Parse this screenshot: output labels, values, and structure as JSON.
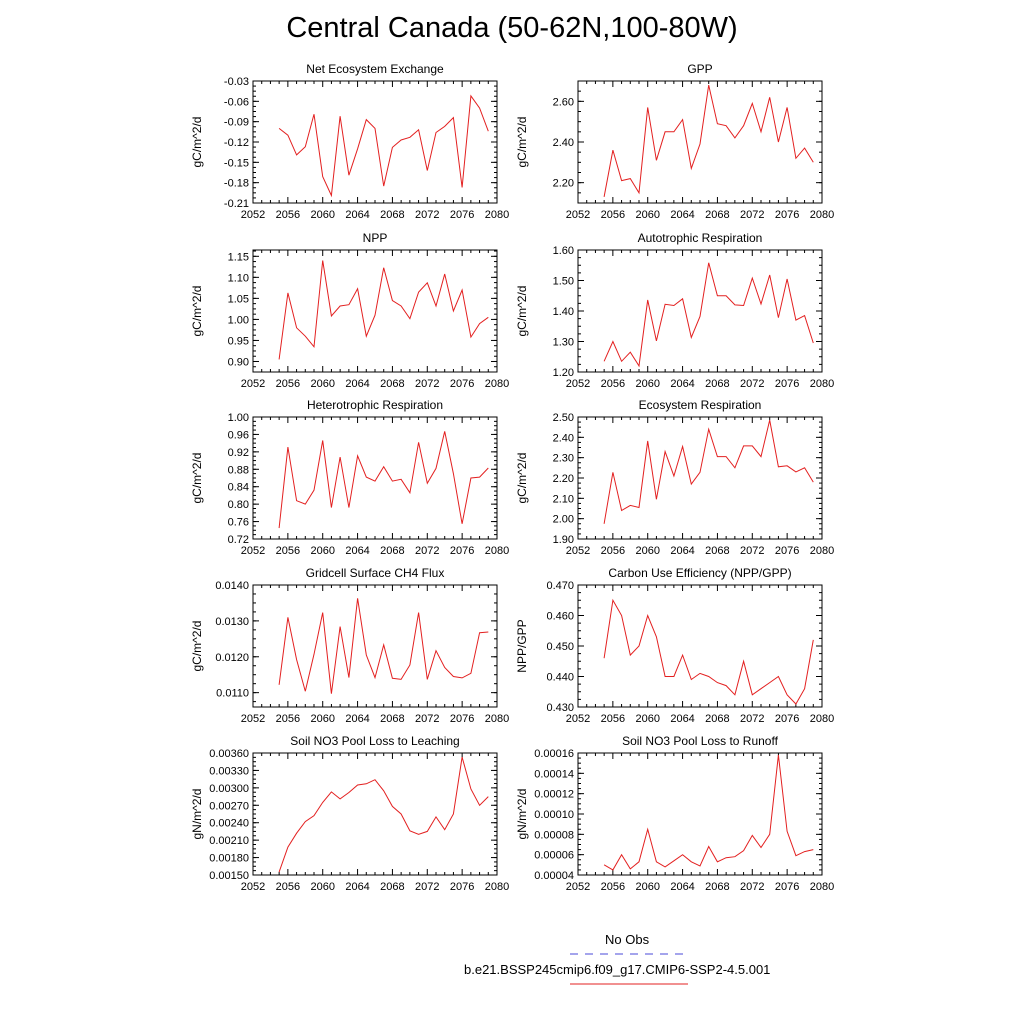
{
  "page": {
    "title": "Central Canada (50-62N,100-80W)"
  },
  "legend": {
    "entries": [
      {
        "label": "No Obs",
        "color": "#4a4ad9",
        "style": "dashed"
      },
      {
        "label": "b.e21.BSSP245cmip6.f09_g17.CMIP6-SSP2-4.5.001",
        "color": "#e32020",
        "style": "solid"
      }
    ]
  },
  "chart_data": [
    {
      "type": "line",
      "title": "Net Ecosystem Exchange",
      "ylabel": "gC/m^2/d",
      "xlim": [
        2052,
        2080
      ],
      "xticks": [
        "2052",
        "2056",
        "2060",
        "2064",
        "2068",
        "2072",
        "2076",
        "2080"
      ],
      "ylim": [
        -0.21,
        -0.03
      ],
      "yticks": [
        "-0.21",
        "-0.18",
        "-0.15",
        "-0.12",
        "-0.09",
        "-0.06",
        "-0.03"
      ],
      "series": [
        {
          "color": "#e32020",
          "x": [
            2055,
            2056,
            2057,
            2058,
            2059,
            2060,
            2061,
            2062,
            2063,
            2064,
            2065,
            2066,
            2067,
            2068,
            2069,
            2070,
            2071,
            2072,
            2073,
            2074,
            2075,
            2076,
            2077,
            2078,
            2079
          ],
          "values": [
            -0.1,
            -0.11,
            -0.139,
            -0.127,
            -0.079,
            -0.171,
            -0.199,
            -0.082,
            -0.169,
            -0.13,
            -0.087,
            -0.1,
            -0.185,
            -0.128,
            -0.117,
            -0.113,
            -0.102,
            -0.162,
            -0.106,
            -0.097,
            -0.084,
            -0.187,
            -0.052,
            -0.07,
            -0.104
          ]
        }
      ]
    },
    {
      "type": "line",
      "title": "GPP",
      "ylabel": "gC/m^2/d",
      "xlim": [
        2052,
        2080
      ],
      "xticks": [
        "2052",
        "2056",
        "2060",
        "2064",
        "2068",
        "2072",
        "2076",
        "2080"
      ],
      "ylim": [
        2.1,
        2.7
      ],
      "yticks": [
        "2.20",
        "2.40",
        "2.60"
      ],
      "series": [
        {
          "color": "#e32020",
          "x": [
            2055,
            2056,
            2057,
            2058,
            2059,
            2060,
            2061,
            2062,
            2063,
            2064,
            2065,
            2066,
            2067,
            2068,
            2069,
            2070,
            2071,
            2072,
            2073,
            2074,
            2075,
            2076,
            2077,
            2078,
            2079
          ],
          "values": [
            2.13,
            2.36,
            2.21,
            2.22,
            2.15,
            2.57,
            2.31,
            2.45,
            2.45,
            2.51,
            2.27,
            2.39,
            2.68,
            2.49,
            2.48,
            2.42,
            2.48,
            2.59,
            2.45,
            2.62,
            2.4,
            2.57,
            2.32,
            2.37,
            2.3
          ]
        }
      ]
    },
    {
      "type": "line",
      "title": "NPP",
      "ylabel": "gC/m^2/d",
      "xlim": [
        2052,
        2080
      ],
      "xticks": [
        "2052",
        "2056",
        "2060",
        "2064",
        "2068",
        "2072",
        "2076",
        "2080"
      ],
      "ylim": [
        0.875,
        1.165
      ],
      "yticks": [
        "0.90",
        "0.95",
        "1.00",
        "1.05",
        "1.10",
        "1.15"
      ],
      "series": [
        {
          "color": "#e32020",
          "x": [
            2055,
            2056,
            2057,
            2058,
            2059,
            2060,
            2061,
            2062,
            2063,
            2064,
            2065,
            2066,
            2067,
            2068,
            2069,
            2070,
            2071,
            2072,
            2073,
            2074,
            2075,
            2076,
            2077,
            2078,
            2079
          ],
          "values": [
            0.905,
            1.063,
            0.98,
            0.96,
            0.935,
            1.14,
            1.008,
            1.032,
            1.035,
            1.073,
            0.96,
            1.01,
            1.123,
            1.045,
            1.032,
            1.002,
            1.065,
            1.087,
            1.032,
            1.108,
            1.02,
            1.07,
            0.958,
            0.99,
            1.005
          ]
        }
      ]
    },
    {
      "type": "line",
      "title": "Autotrophic Respiration",
      "ylabel": "gC/m^2/d",
      "xlim": [
        2052,
        2080
      ],
      "xticks": [
        "2052",
        "2056",
        "2060",
        "2064",
        "2068",
        "2072",
        "2076",
        "2080"
      ],
      "ylim": [
        1.2,
        1.6
      ],
      "yticks": [
        "1.20",
        "1.30",
        "1.40",
        "1.50",
        "1.60"
      ],
      "series": [
        {
          "color": "#e32020",
          "x": [
            2055,
            2056,
            2057,
            2058,
            2059,
            2060,
            2061,
            2062,
            2063,
            2064,
            2065,
            2066,
            2067,
            2068,
            2069,
            2070,
            2071,
            2072,
            2073,
            2074,
            2075,
            2076,
            2077,
            2078,
            2079
          ],
          "values": [
            1.235,
            1.3,
            1.235,
            1.265,
            1.22,
            1.436,
            1.302,
            1.422,
            1.418,
            1.44,
            1.313,
            1.382,
            1.558,
            1.45,
            1.45,
            1.42,
            1.418,
            1.508,
            1.423,
            1.518,
            1.378,
            1.505,
            1.37,
            1.385,
            1.295
          ]
        }
      ]
    },
    {
      "type": "line",
      "title": "Heterotrophic Respiration",
      "ylabel": "gC/m^2/d",
      "xlim": [
        2052,
        2080
      ],
      "xticks": [
        "2052",
        "2056",
        "2060",
        "2064",
        "2068",
        "2072",
        "2076",
        "2080"
      ],
      "ylim": [
        0.72,
        1.0
      ],
      "yticks": [
        "0.72",
        "0.76",
        "0.80",
        "0.84",
        "0.88",
        "0.92",
        "0.96",
        "1.00"
      ],
      "series": [
        {
          "color": "#e32020",
          "x": [
            2055,
            2056,
            2057,
            2058,
            2059,
            2060,
            2061,
            2062,
            2063,
            2064,
            2065,
            2066,
            2067,
            2068,
            2069,
            2070,
            2071,
            2072,
            2073,
            2074,
            2075,
            2076,
            2077,
            2078,
            2079
          ],
          "values": [
            0.745,
            0.931,
            0.808,
            0.8,
            0.832,
            0.946,
            0.792,
            0.908,
            0.792,
            0.911,
            0.862,
            0.853,
            0.886,
            0.853,
            0.857,
            0.826,
            0.942,
            0.848,
            0.882,
            0.967,
            0.87,
            0.755,
            0.86,
            0.862,
            0.883
          ]
        }
      ]
    },
    {
      "type": "line",
      "title": "Ecosystem Respiration",
      "ylabel": "gC/m^2/d",
      "xlim": [
        2052,
        2080
      ],
      "xticks": [
        "2052",
        "2056",
        "2060",
        "2064",
        "2068",
        "2072",
        "2076",
        "2080"
      ],
      "ylim": [
        1.9,
        2.5
      ],
      "yticks": [
        "1.90",
        "2.00",
        "2.10",
        "2.20",
        "2.30",
        "2.40",
        "2.50"
      ],
      "series": [
        {
          "color": "#e32020",
          "x": [
            2055,
            2056,
            2057,
            2058,
            2059,
            2060,
            2061,
            2062,
            2063,
            2064,
            2065,
            2066,
            2067,
            2068,
            2069,
            2070,
            2071,
            2072,
            2073,
            2074,
            2075,
            2076,
            2077,
            2078,
            2079
          ],
          "values": [
            1.975,
            2.228,
            2.04,
            2.065,
            2.055,
            2.382,
            2.095,
            2.33,
            2.21,
            2.355,
            2.17,
            2.228,
            2.44,
            2.305,
            2.305,
            2.25,
            2.358,
            2.358,
            2.305,
            2.485,
            2.255,
            2.26,
            2.23,
            2.25,
            2.18
          ]
        }
      ]
    },
    {
      "type": "line",
      "title": "Gridcell Surface CH4 Flux",
      "ylabel": "gC/m^2/d",
      "xlim": [
        2052,
        2080
      ],
      "xticks": [
        "2052",
        "2056",
        "2060",
        "2064",
        "2068",
        "2072",
        "2076",
        "2080"
      ],
      "ylim": [
        0.0106,
        0.014
      ],
      "yticks": [
        "0.0110",
        "0.0120",
        "0.0130",
        "0.0140"
      ],
      "series": [
        {
          "color": "#e32020",
          "x": [
            2055,
            2056,
            2057,
            2058,
            2059,
            2060,
            2061,
            2062,
            2063,
            2064,
            2065,
            2066,
            2067,
            2068,
            2069,
            2070,
            2071,
            2072,
            2073,
            2074,
            2075,
            2076,
            2077,
            2078,
            2079
          ],
          "values": [
            0.01122,
            0.0131,
            0.01192,
            0.01104,
            0.01207,
            0.01323,
            0.01097,
            0.01284,
            0.01142,
            0.01363,
            0.01205,
            0.01142,
            0.01233,
            0.0114,
            0.01137,
            0.01177,
            0.01323,
            0.01137,
            0.01217,
            0.0117,
            0.01145,
            0.01141,
            0.01154,
            0.01267,
            0.01269
          ]
        }
      ]
    },
    {
      "type": "line",
      "title": "Carbon Use Efficiency (NPP/GPP)",
      "ylabel": "NPP/GPP",
      "xlim": [
        2052,
        2080
      ],
      "xticks": [
        "2052",
        "2056",
        "2060",
        "2064",
        "2068",
        "2072",
        "2076",
        "2080"
      ],
      "ylim": [
        0.43,
        0.47
      ],
      "yticks": [
        "0.430",
        "0.440",
        "0.450",
        "0.460",
        "0.470"
      ],
      "series": [
        {
          "color": "#e32020",
          "x": [
            2055,
            2056,
            2057,
            2058,
            2059,
            2060,
            2061,
            2062,
            2063,
            2064,
            2065,
            2066,
            2067,
            2068,
            2069,
            2070,
            2071,
            2072,
            2073,
            2074,
            2075,
            2076,
            2077,
            2078,
            2079
          ],
          "values": [
            0.446,
            0.465,
            0.46,
            0.447,
            0.45,
            0.46,
            0.453,
            0.44,
            0.44,
            0.447,
            0.439,
            0.441,
            0.44,
            0.438,
            0.437,
            0.434,
            0.445,
            0.434,
            0.436,
            0.438,
            0.44,
            0.434,
            0.431,
            0.436,
            0.452
          ]
        }
      ]
    },
    {
      "type": "line",
      "title": "Soil NO3 Pool Loss to Leaching",
      "ylabel": "gN/m^2/d",
      "xlim": [
        2052,
        2080
      ],
      "xticks": [
        "2052",
        "2056",
        "2060",
        "2064",
        "2068",
        "2072",
        "2076",
        "2080"
      ],
      "ylim": [
        0.0015,
        0.0036
      ],
      "yticks": [
        "0.00150",
        "0.00180",
        "0.00210",
        "0.00240",
        "0.00270",
        "0.00300",
        "0.00330",
        "0.00360"
      ],
      "series": [
        {
          "color": "#e32020",
          "x": [
            2055,
            2056,
            2057,
            2058,
            2059,
            2060,
            2061,
            2062,
            2063,
            2064,
            2065,
            2066,
            2067,
            2068,
            2069,
            2070,
            2071,
            2072,
            2073,
            2074,
            2075,
            2076,
            2077,
            2078,
            2079
          ],
          "values": [
            0.00155,
            0.00198,
            0.00222,
            0.00242,
            0.00252,
            0.00275,
            0.00293,
            0.00281,
            0.00292,
            0.00305,
            0.00307,
            0.00314,
            0.00295,
            0.00268,
            0.00255,
            0.00226,
            0.0022,
            0.00225,
            0.0025,
            0.00228,
            0.00255,
            0.00353,
            0.00298,
            0.0027,
            0.00285
          ]
        }
      ]
    },
    {
      "type": "line",
      "title": "Soil NO3 Pool Loss to Runoff",
      "ylabel": "gN/m^2/d",
      "xlim": [
        2052,
        2080
      ],
      "xticks": [
        "2052",
        "2056",
        "2060",
        "2064",
        "2068",
        "2072",
        "2076",
        "2080"
      ],
      "ylim": [
        4e-05,
        0.00016
      ],
      "yticks": [
        "0.00004",
        "0.00006",
        "0.00008",
        "0.00010",
        "0.00012",
        "0.00014",
        "0.00016"
      ],
      "series": [
        {
          "color": "#e32020",
          "x": [
            2055,
            2056,
            2057,
            2058,
            2059,
            2060,
            2061,
            2062,
            2063,
            2064,
            2065,
            2066,
            2067,
            2068,
            2069,
            2070,
            2071,
            2072,
            2073,
            2074,
            2075,
            2076,
            2077,
            2078,
            2079
          ],
          "values": [
            5e-05,
            4.5e-05,
            6e-05,
            4.6e-05,
            5.3e-05,
            8.5e-05,
            5.3e-05,
            4.8e-05,
            5.4e-05,
            6e-05,
            5.3e-05,
            4.9e-05,
            6.8e-05,
            5.3e-05,
            5.7e-05,
            5.8e-05,
            6.4e-05,
            7.9e-05,
            6.7e-05,
            8e-05,
            0.000158,
            8.3e-05,
            5.9e-05,
            6.3e-05,
            6.5e-05
          ]
        }
      ]
    }
  ]
}
